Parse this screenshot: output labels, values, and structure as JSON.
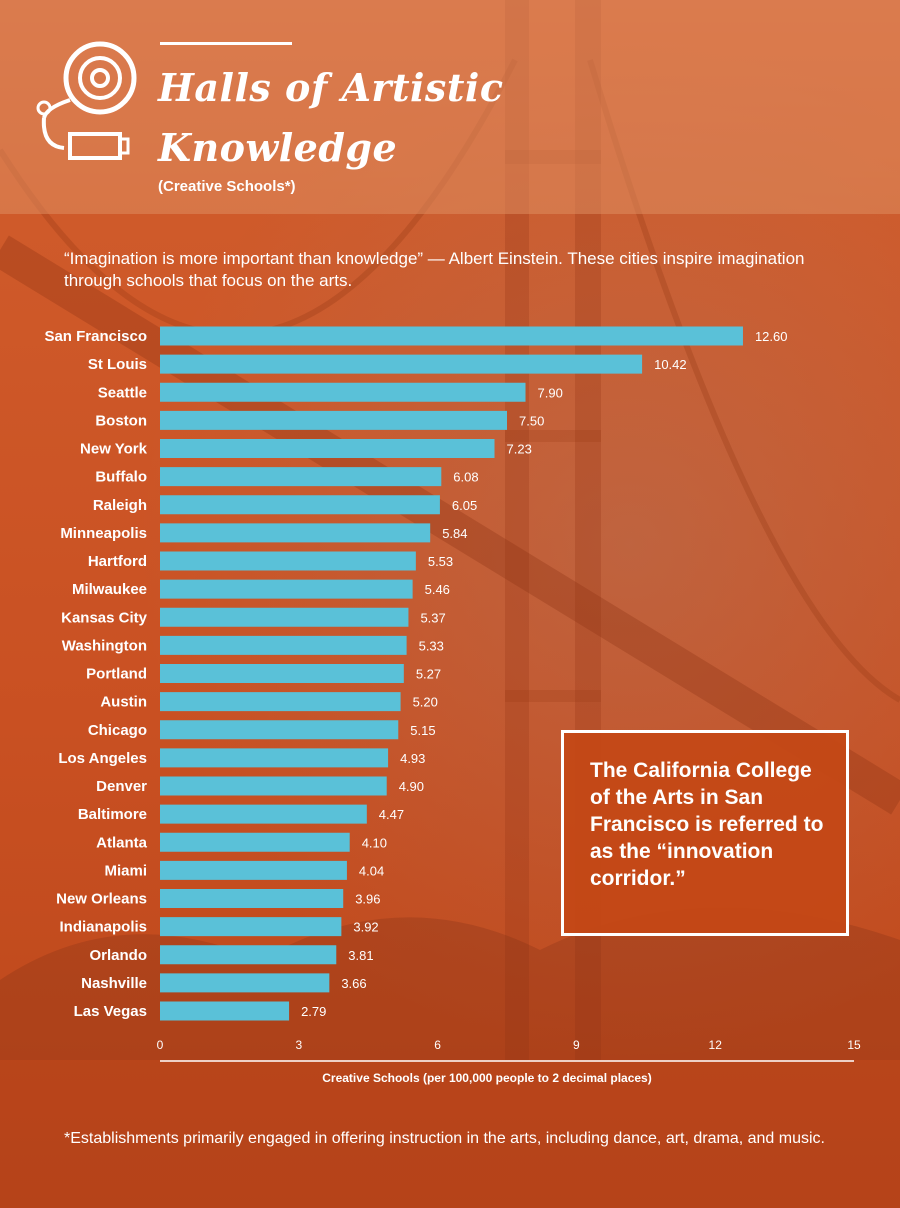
{
  "header": {
    "title": "Halls of Artistic Knowledge",
    "subtitle": "(Creative Schools*)"
  },
  "intro": "“Imagination is more important than knowledge” — Albert Einstein. These cities inspire imagination through schools that focus on the arts.",
  "callout": "The California College of the Arts in San Francisco is referred to as the “innovation corridor.”",
  "footnote": "*Establishments primarily engaged in offering instruction in the arts, including dance, art, drama, and music.",
  "colors": {
    "bar": "#5ac1d8",
    "background": "#c9501f",
    "text": "#ffffff"
  },
  "chart_data": {
    "type": "bar",
    "orientation": "horizontal",
    "title": "",
    "xlabel": "Creative Schools (per 100,000 people to 2 decimal places)",
    "ylabel": "",
    "xlim": [
      0,
      15
    ],
    "ticks": [
      0,
      3,
      6,
      9,
      12,
      15
    ],
    "grid": false,
    "categories": [
      "San Francisco",
      "St Louis",
      "Seattle",
      "Boston",
      "New York",
      "Buffalo",
      "Raleigh",
      "Minneapolis",
      "Hartford",
      "Milwaukee",
      "Kansas City",
      "Washington",
      "Portland",
      "Austin",
      "Chicago",
      "Los Angeles",
      "Denver",
      "Baltimore",
      "Atlanta",
      "Miami",
      "New Orleans",
      "Indianapolis",
      "Orlando",
      "Nashville",
      "Las Vegas"
    ],
    "values": [
      12.6,
      10.42,
      7.9,
      7.5,
      7.23,
      6.08,
      6.05,
      5.84,
      5.53,
      5.46,
      5.37,
      5.33,
      5.27,
      5.2,
      5.15,
      4.93,
      4.9,
      4.47,
      4.1,
      4.04,
      3.96,
      3.92,
      3.81,
      3.66,
      2.79
    ],
    "value_labels": [
      "12.60",
      "10.42",
      "7.90",
      "7.50",
      "7.23",
      "6.08",
      "6.05",
      "5.84",
      "5.53",
      "5.46",
      "5.37",
      "5.33",
      "5.27",
      "5.20",
      "5.15",
      "4.93",
      "4.90",
      "4.47",
      "4.10",
      "4.04",
      "3.96",
      "3.92",
      "3.81",
      "3.66",
      "2.79"
    ]
  }
}
